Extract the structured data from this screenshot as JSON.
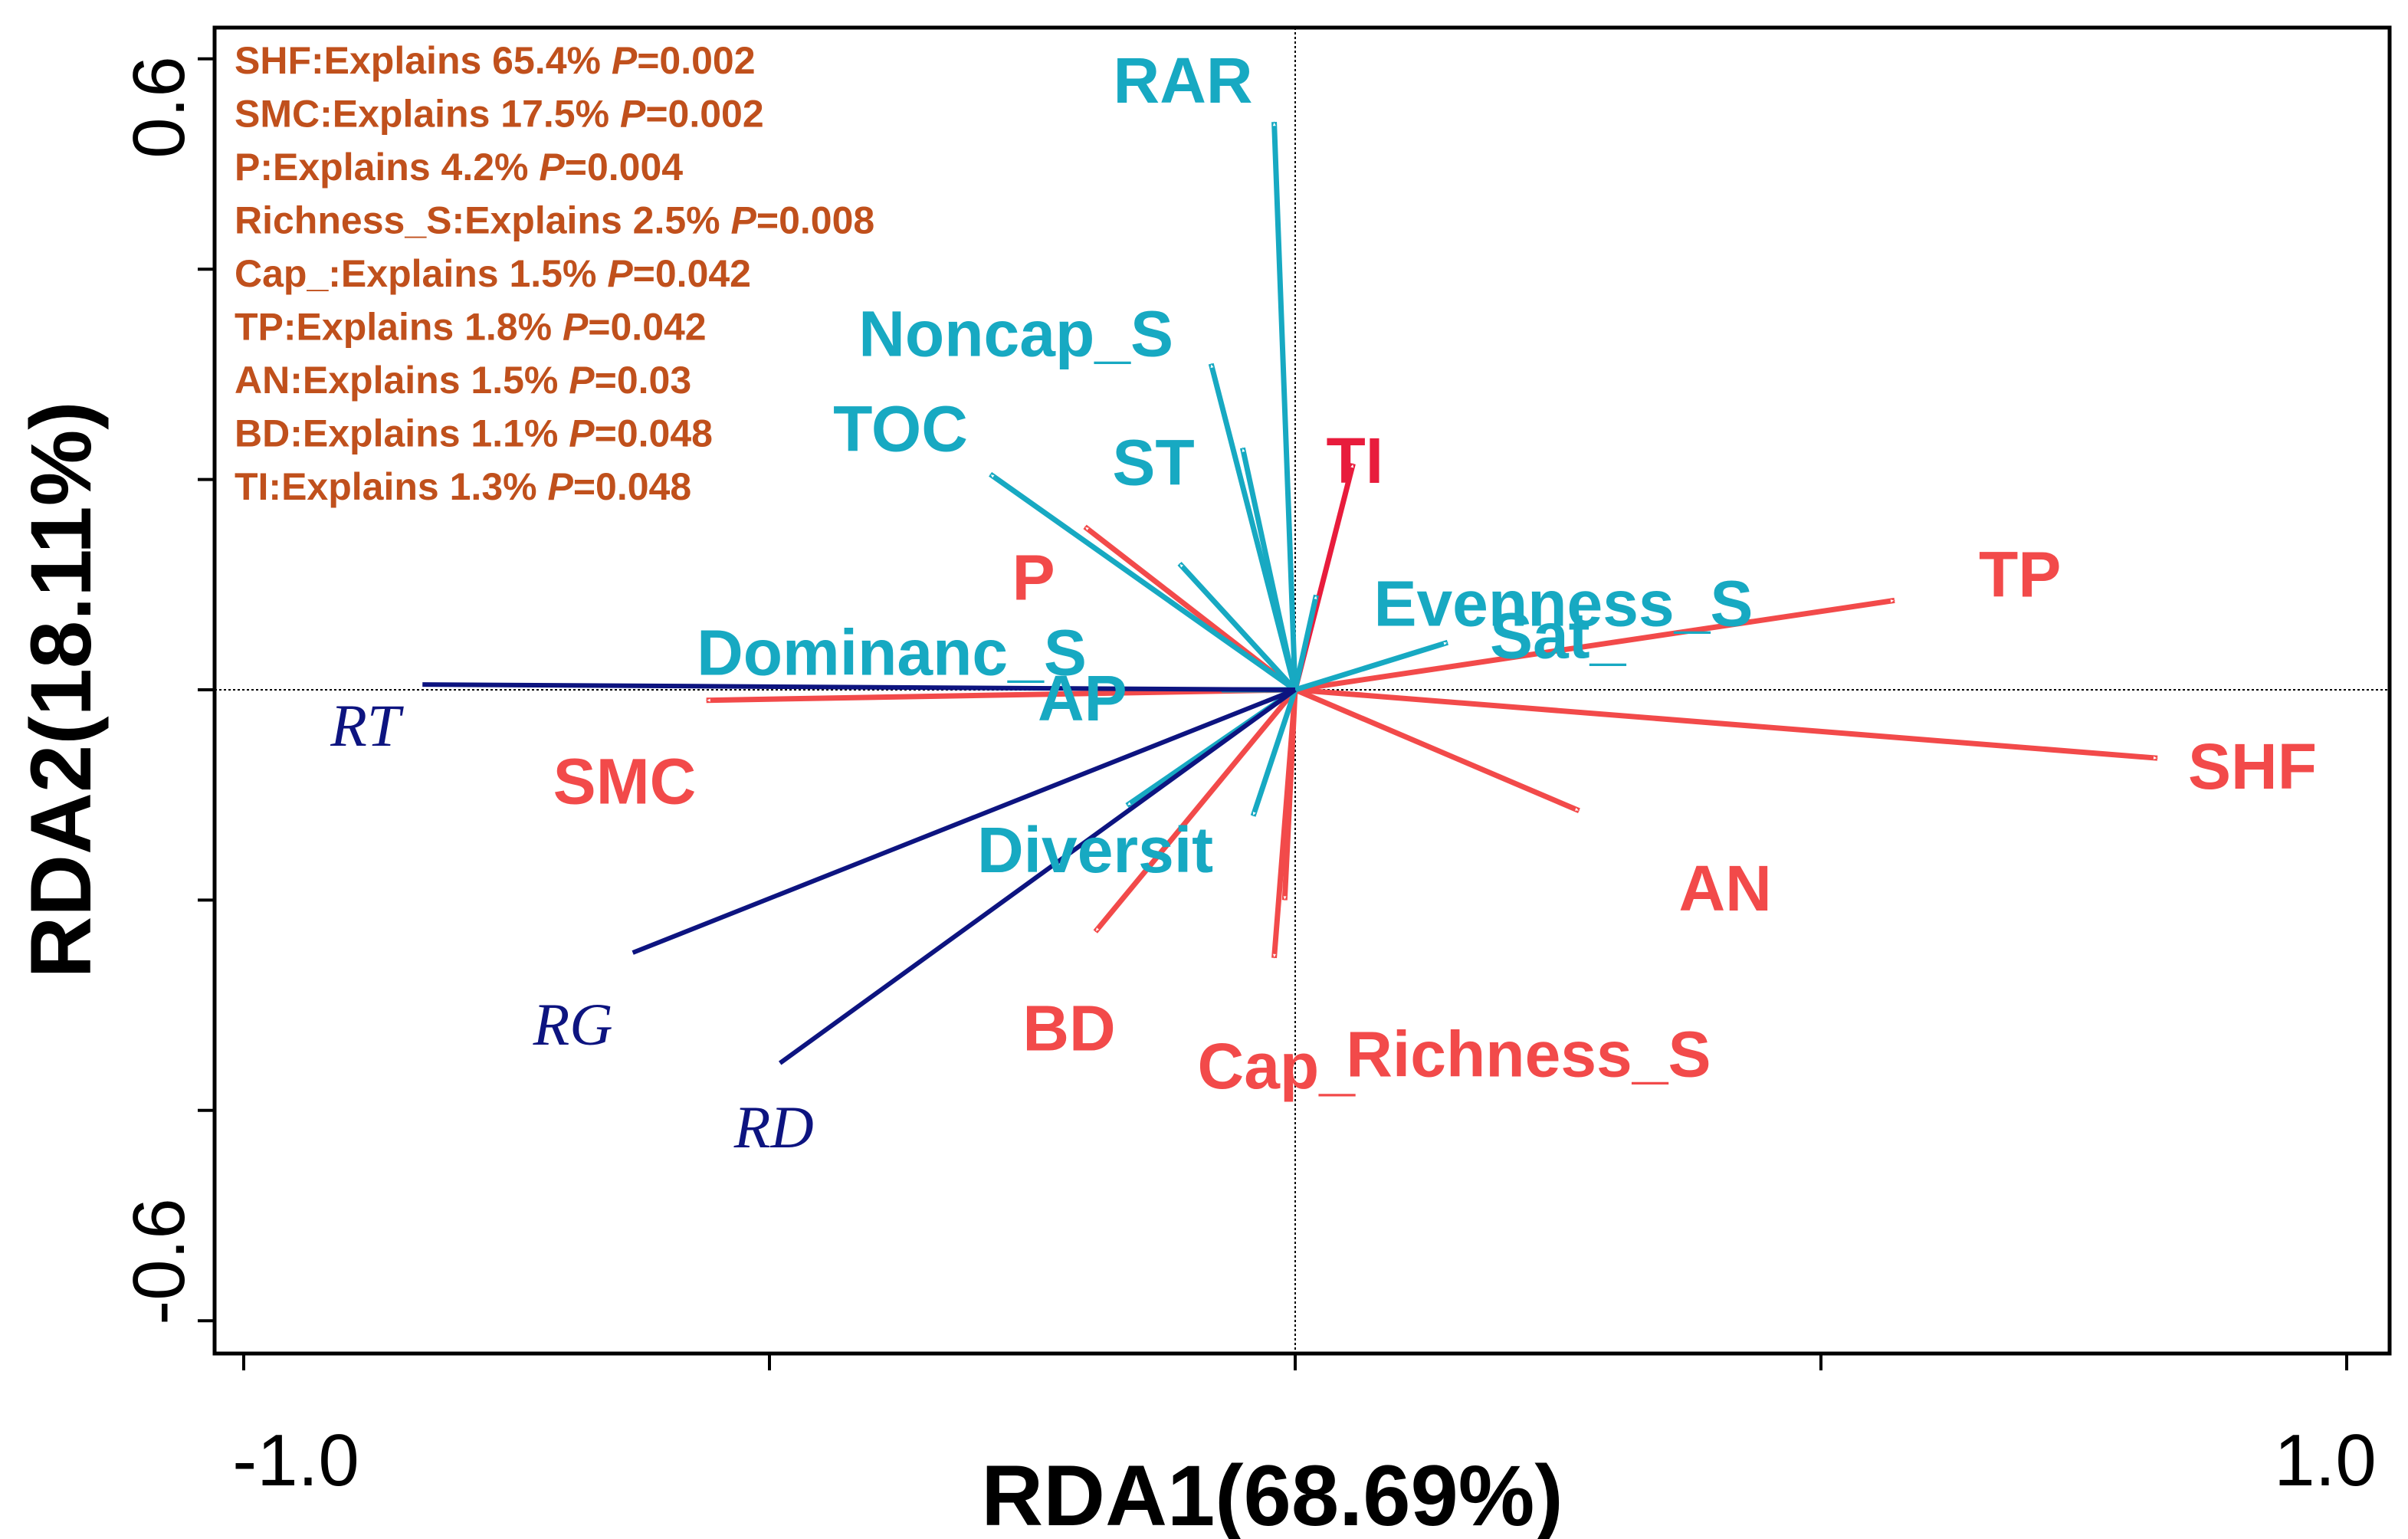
{
  "chart_data": {
    "type": "scatter",
    "title": "",
    "xlabel": "RDA1(68.69%)",
    "ylabel": "RDA2(18.11%)",
    "xlim": [
      -1.02,
      1.02
    ],
    "ylim": [
      -0.64,
      0.64
    ],
    "x_ticks": [
      -1.0,
      -0.5,
      0,
      0.5,
      1.0
    ],
    "y_ticks": [
      -0.6,
      -0.4,
      -0.2,
      0,
      0.2,
      0.4,
      0.6
    ],
    "x_tick_labels": [
      "-1.0",
      "1.0"
    ],
    "y_tick_labels": [
      "-0.6",
      "0.6"
    ],
    "grid": false,
    "zero_lines": true,
    "colors": {
      "significant": "#f24a4a",
      "top_significant": "#e81c3c",
      "other": "#17a9c2",
      "response": "#0d1480",
      "annotation": "#c0501c"
    },
    "annotations": [
      {
        "name": "SHF",
        "explains": "65.4%",
        "p": "0.002"
      },
      {
        "name": "SMC",
        "explains": "17.5%",
        "p": "0.002"
      },
      {
        "name": "P",
        "explains": "4.2%",
        "p": "0.004"
      },
      {
        "name": "Richness_S",
        "explains": "2.5%",
        "p": "0.008"
      },
      {
        "name": "Cap_",
        "explains": "1.5%",
        "p": "0.042"
      },
      {
        "name": "TP",
        "explains": "1.8%",
        "p": "0.042"
      },
      {
        "name": "AN",
        "explains": "1.5%",
        "p": "0.03"
      },
      {
        "name": "BD",
        "explains": "1.1%",
        "p": "0.048"
      },
      {
        "name": "TI",
        "explains": "1.3%",
        "p": "0.048"
      }
    ],
    "annotation_word": "Explains",
    "annotation_p": "P",
    "series": [
      {
        "group": "explanatory-significant",
        "color": "#f24a4a",
        "points": [
          {
            "label": "TP",
            "x": 0.57,
            "y": 0.085
          },
          {
            "label": "SHF",
            "x": 0.82,
            "y": -0.065
          },
          {
            "label": "AN",
            "x": 0.27,
            "y": -0.115
          },
          {
            "label": "Richness_S",
            "x": -0.01,
            "y": -0.2
          },
          {
            "label": "Cap_",
            "x": -0.02,
            "y": -0.255
          },
          {
            "label": "BD",
            "x": -0.19,
            "y": -0.23
          },
          {
            "label": "SMC",
            "x": -0.56,
            "y": -0.01
          },
          {
            "label": "P",
            "x": -0.2,
            "y": 0.155
          },
          {
            "label": "TI",
            "x": 0.055,
            "y": 0.215
          }
        ]
      },
      {
        "group": "explanatory-other",
        "color": "#17a9c2",
        "points": [
          {
            "label": "RAR",
            "x": -0.02,
            "y": 0.54
          },
          {
            "label": "Noncap_S",
            "x": -0.08,
            "y": 0.31
          },
          {
            "label": "ST",
            "x": -0.05,
            "y": 0.23
          },
          {
            "label": "TOC",
            "x": -0.29,
            "y": 0.205
          },
          {
            "label": "Dominanc_S",
            "x": -0.11,
            "y": 0.12
          },
          {
            "label": "Evenness_S",
            "x": 0.02,
            "y": 0.09
          },
          {
            "label": "Sat_",
            "x": 0.145,
            "y": 0.045
          },
          {
            "label": "AP",
            "x": -0.07,
            "y": 0.0
          },
          {
            "label": "Diversit",
            "x": -0.16,
            "y": -0.11
          },
          {
            "label": "Diversit",
            "x": -0.04,
            "y": -0.12
          }
        ]
      },
      {
        "group": "response",
        "color": "#0d1480",
        "points": [
          {
            "label": "RT",
            "x": -0.83,
            "y": 0.005
          },
          {
            "label": "RG",
            "x": -0.63,
            "y": -0.25
          },
          {
            "label": "RD",
            "x": -0.49,
            "y": -0.355
          }
        ]
      }
    ]
  }
}
